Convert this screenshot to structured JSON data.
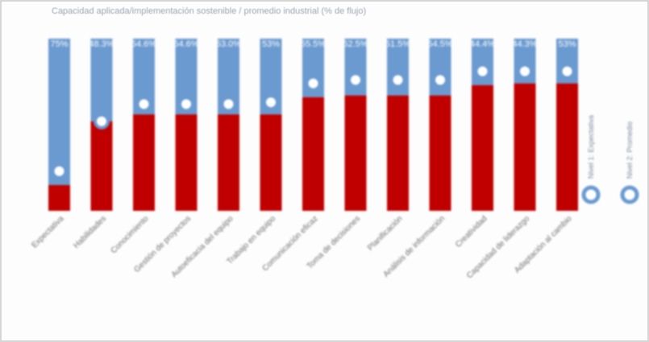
{
  "chart_data": {
    "type": "bar",
    "title": "Capacidad aplicada/implementación sostenible / promedio industrial (% de flujo)",
    "categories": [
      "Expectativa",
      "Habilidades",
      "Conocimiento",
      "Gestión de proyectos",
      "Autoeficacia del equipo",
      "Trabajo en equipo",
      "Comunicación eficaz",
      "Toma de decisiones",
      "Planificación",
      "Análisis de información",
      "Creatividad",
      "Capacidad de liderazgo",
      "Adaptación al cambio"
    ],
    "series": [
      {
        "name": "",
        "values": [
          15,
          52,
          56,
          56,
          56,
          56,
          66,
          67,
          67,
          67,
          73,
          74,
          74
        ]
      },
      {
        "name": "",
        "values": [
          85,
          48,
          44,
          44,
          44,
          44,
          34,
          33,
          33,
          33,
          27,
          26,
          26
        ]
      }
    ],
    "marker_values": [
      23,
      52,
      62,
      62,
      62,
      63,
      74,
      76,
      76,
      76,
      81,
      81,
      81
    ],
    "bar_labels": [
      "75%",
      "48.3%",
      "54.6%",
      "54.6%",
      "53.0%",
      "53%",
      "55.5%",
      "52.5%",
      "51.5%",
      "54.5%",
      "44.4%",
      "44.3%",
      "53%"
    ],
    "legend": [
      "Nivel 1: Expectativa",
      "Nivel 2: Promedio"
    ],
    "legend_position": "right",
    "ylim": [
      0,
      100
    ],
    "colors": {
      "bottom": "#c00000",
      "top": "#6a9ad0",
      "marker": "#6a9ad0",
      "marker_fill": "#ffffff"
    }
  }
}
